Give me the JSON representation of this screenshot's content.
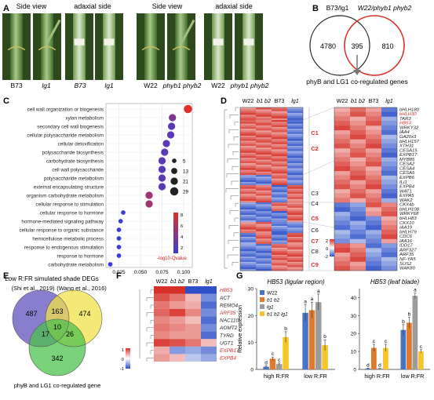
{
  "panel_labels": {
    "a": "A",
    "b": "B",
    "c": "C",
    "d": "D",
    "e": "E",
    "f": "F",
    "g": "G"
  },
  "panel_a": {
    "headers": [
      "Side view",
      "adaxial side",
      "Side view",
      "adaxial side"
    ],
    "photo_labels": [
      "B73",
      "lg1",
      "B73",
      "lg1",
      "W22",
      "phyb1 phyb2",
      "W22",
      "phyb1 phyb2"
    ]
  },
  "panel_b": {
    "set1_label": "B73/lg1",
    "set2_label": "W22/phyb1 phyb2",
    "left_count": "4780",
    "overlap_count": "395",
    "right_count": "810",
    "caption": "phyB and LG1 co-regulated genes",
    "colors": {
      "set1": "#222222",
      "set2": "#d9302c"
    }
  },
  "panel_c": {
    "chart_data": {
      "type": "scatter",
      "categories": [
        "cell wall organization or biogenesis",
        "xylan metabolism",
        "secondary cell wall biogenesis",
        "cellular polysaccharide metabolism",
        "cellular detoxification",
        "polysaccharide biosynthesis",
        "carbohydrate biosynthesis",
        "cell wall polysaccharide",
        "polysaccharide metabolism",
        "external encapsulating structure",
        "organism carbohydrate metabolism",
        "cellular response to stimulation",
        "cellular response to hormone",
        "hormone-mediated signaling pathway",
        "cellular response to organic substance",
        "hemicellulose metabolic process",
        "response to endogenous stimulation",
        "response to hormone",
        "carbohydrate metabolism"
      ],
      "x": [
        0.105,
        0.087,
        0.086,
        0.085,
        0.08,
        0.078,
        0.075,
        0.075,
        0.075,
        0.075,
        0.06,
        0.06,
        0.03,
        0.027,
        0.025,
        0.025,
        0.025,
        0.025,
        0.015
      ],
      "size": [
        29,
        21,
        21,
        21,
        21,
        21,
        21,
        21,
        21,
        21,
        21,
        21,
        5,
        5,
        5,
        5,
        5,
        5,
        5
      ],
      "qvalue_score": [
        9,
        6,
        5,
        5,
        5,
        5,
        5,
        5,
        5,
        5,
        7,
        7,
        4,
        4,
        4,
        4,
        4,
        4,
        4
      ],
      "x_ticks": [
        "0.025",
        "0.050",
        "0.075",
        "0.100"
      ],
      "xlim": [
        0.01,
        0.11
      ],
      "size_legend": [
        "5",
        "13",
        "21",
        "29"
      ],
      "colorbar_ticks": [
        "8",
        "6",
        "4",
        "2"
      ],
      "colorbar_label": "-log10-Qvalue",
      "colors": {
        "low": "#3a3bd8",
        "high": "#e0302a"
      }
    }
  },
  "panel_d": {
    "col_headers": [
      "W22",
      "b1 b2",
      "B73",
      "lg1"
    ],
    "clusters": [
      "C1",
      "C2",
      "C3",
      "C4",
      "C5",
      "C6",
      "C7",
      "C8",
      "C9"
    ],
    "cluster_red": [
      true,
      true,
      false,
      false,
      true,
      false,
      true,
      false,
      true
    ],
    "genes": [
      "bHLH180",
      "bHLH30",
      "TAR3",
      "HB53",
      "WRKY32",
      "IAA4",
      "GA20x3",
      "bHLH157",
      "XTH31",
      "CESA15",
      "EXPB17",
      "MYB85",
      "CESA2",
      "CESA4",
      "CESA5",
      "EXPB6",
      "ILI1",
      "EXPB4",
      "WAT1",
      "EXPA5",
      "WAK2",
      "CKX4b",
      "bHLH108",
      "WRKY68",
      "bHLH83",
      "CKX10",
      "IAA19",
      "bHLH79",
      "CDC6",
      "IAA16",
      "IDD17",
      "ARF327",
      "ARF35",
      "NF-YA5",
      "SUS2",
      "WAK80"
    ],
    "gene_red": [
      false,
      true,
      false,
      true,
      false,
      false,
      false,
      false,
      false,
      false,
      false,
      false,
      false,
      false,
      false,
      false,
      false,
      false,
      false,
      false,
      false,
      false,
      false,
      false,
      false,
      false,
      false,
      false,
      false,
      false,
      false,
      false,
      false,
      false,
      false,
      false
    ],
    "scale_ticks": [
      "2",
      "0",
      "-2"
    ]
  },
  "panel_e": {
    "title": "Low R:FR simulated shade DEGs",
    "set1_label": "(Shi et al., 2019)",
    "set2_label": "(Wang et al., 2016)",
    "set3_label": "phyB and LG1 co-regulated gene",
    "counts": {
      "a_only": "487",
      "ab": "163",
      "b_only": "474",
      "a_c": "17",
      "abc": "10",
      "b_c": "26",
      "c_only": "342"
    },
    "colors": {
      "a": "#7b70c8",
      "b": "#f0e14a",
      "c": "#4cc24c"
    }
  },
  "panel_f": {
    "col_headers": [
      "W22",
      "b1 b2",
      "B73",
      "lg1"
    ],
    "genes": [
      "HB53",
      "ACT",
      "REMO4",
      "ARF35",
      "NAC110",
      "AOMT2",
      "TYRD",
      "UGT1",
      "EXPB17",
      "EXPB4"
    ],
    "gene_red": [
      true,
      false,
      false,
      true,
      false,
      false,
      false,
      false,
      true,
      true
    ],
    "values": [
      [
        2,
        2,
        -1,
        -1
      ],
      [
        0.8,
        0.6,
        0.2,
        -0.6
      ],
      [
        0.6,
        0.4,
        0.3,
        -0.8
      ],
      [
        0.7,
        0.9,
        0.5,
        -0.6
      ],
      [
        0.5,
        0.4,
        0.2,
        -0.8
      ],
      [
        0.6,
        0.5,
        0.4,
        -0.6
      ],
      [
        0.5,
        0.4,
        0.4,
        -0.8
      ],
      [
        0.9,
        0.8,
        0.6,
        0.2
      ],
      [
        0.3,
        -0.5,
        -0.4,
        -0.6
      ],
      [
        0.4,
        0.2,
        -0.2,
        -0.4
      ]
    ],
    "scale_ticks": [
      "1",
      "0",
      "-1"
    ]
  },
  "panel_g": {
    "chart_data": [
      {
        "type": "bar",
        "title": "HB53 (ligular region)",
        "ylabel": "Relative expression",
        "categories": [
          "high R:FR",
          "low R:FR"
        ],
        "ylim": [
          0,
          30
        ],
        "yticks": [
          "0",
          "10",
          "20",
          "30"
        ],
        "series": [
          {
            "name": "W22",
            "values": [
              1,
              21
            ],
            "err": [
              0.3,
              3
            ],
            "letters": [
              "d",
              "a"
            ]
          },
          {
            "name": "b1 b2",
            "values": [
              4,
              22
            ],
            "err": [
              0.6,
              3
            ],
            "letters": [
              "c",
              "a"
            ]
          },
          {
            "name": "lg1",
            "values": [
              2,
              25
            ],
            "err": [
              0.4,
              3
            ],
            "letters": [
              "c",
              "a"
            ]
          },
          {
            "name": "b1 b2 lg1",
            "values": [
              12,
              9
            ],
            "err": [
              2,
              2
            ],
            "letters": [
              "b",
              "b"
            ]
          }
        ],
        "legend": "top-left"
      },
      {
        "type": "bar",
        "title": "HB53 (leaf blade)",
        "ylabel": "",
        "categories": [
          "high R:FR",
          "low R:FR"
        ],
        "ylim": [
          0,
          45
        ],
        "yticks": [
          "0",
          "10",
          "20",
          "30",
          "40"
        ],
        "series": [
          {
            "name": "W22",
            "values": [
              0.5,
              22
            ],
            "err": [
              0.2,
              3
            ],
            "letters": [
              "d",
              "b"
            ]
          },
          {
            "name": "b1 b2",
            "values": [
              12,
              26
            ],
            "err": [
              2,
              3
            ],
            "letters": [
              "c",
              "b"
            ]
          },
          {
            "name": "lg1",
            "values": [
              0.5,
              41
            ],
            "err": [
              0.2,
              1.5
            ],
            "letters": [
              "d",
              "a"
            ]
          },
          {
            "name": "b1 b2 lg1",
            "values": [
              12,
              10
            ],
            "err": [
              2,
              1
            ],
            "letters": [
              "c",
              "c"
            ]
          }
        ]
      }
    ],
    "colors": [
      "#4a73c6",
      "#e27a2e",
      "#9c9c9c",
      "#f7c52a"
    ]
  }
}
